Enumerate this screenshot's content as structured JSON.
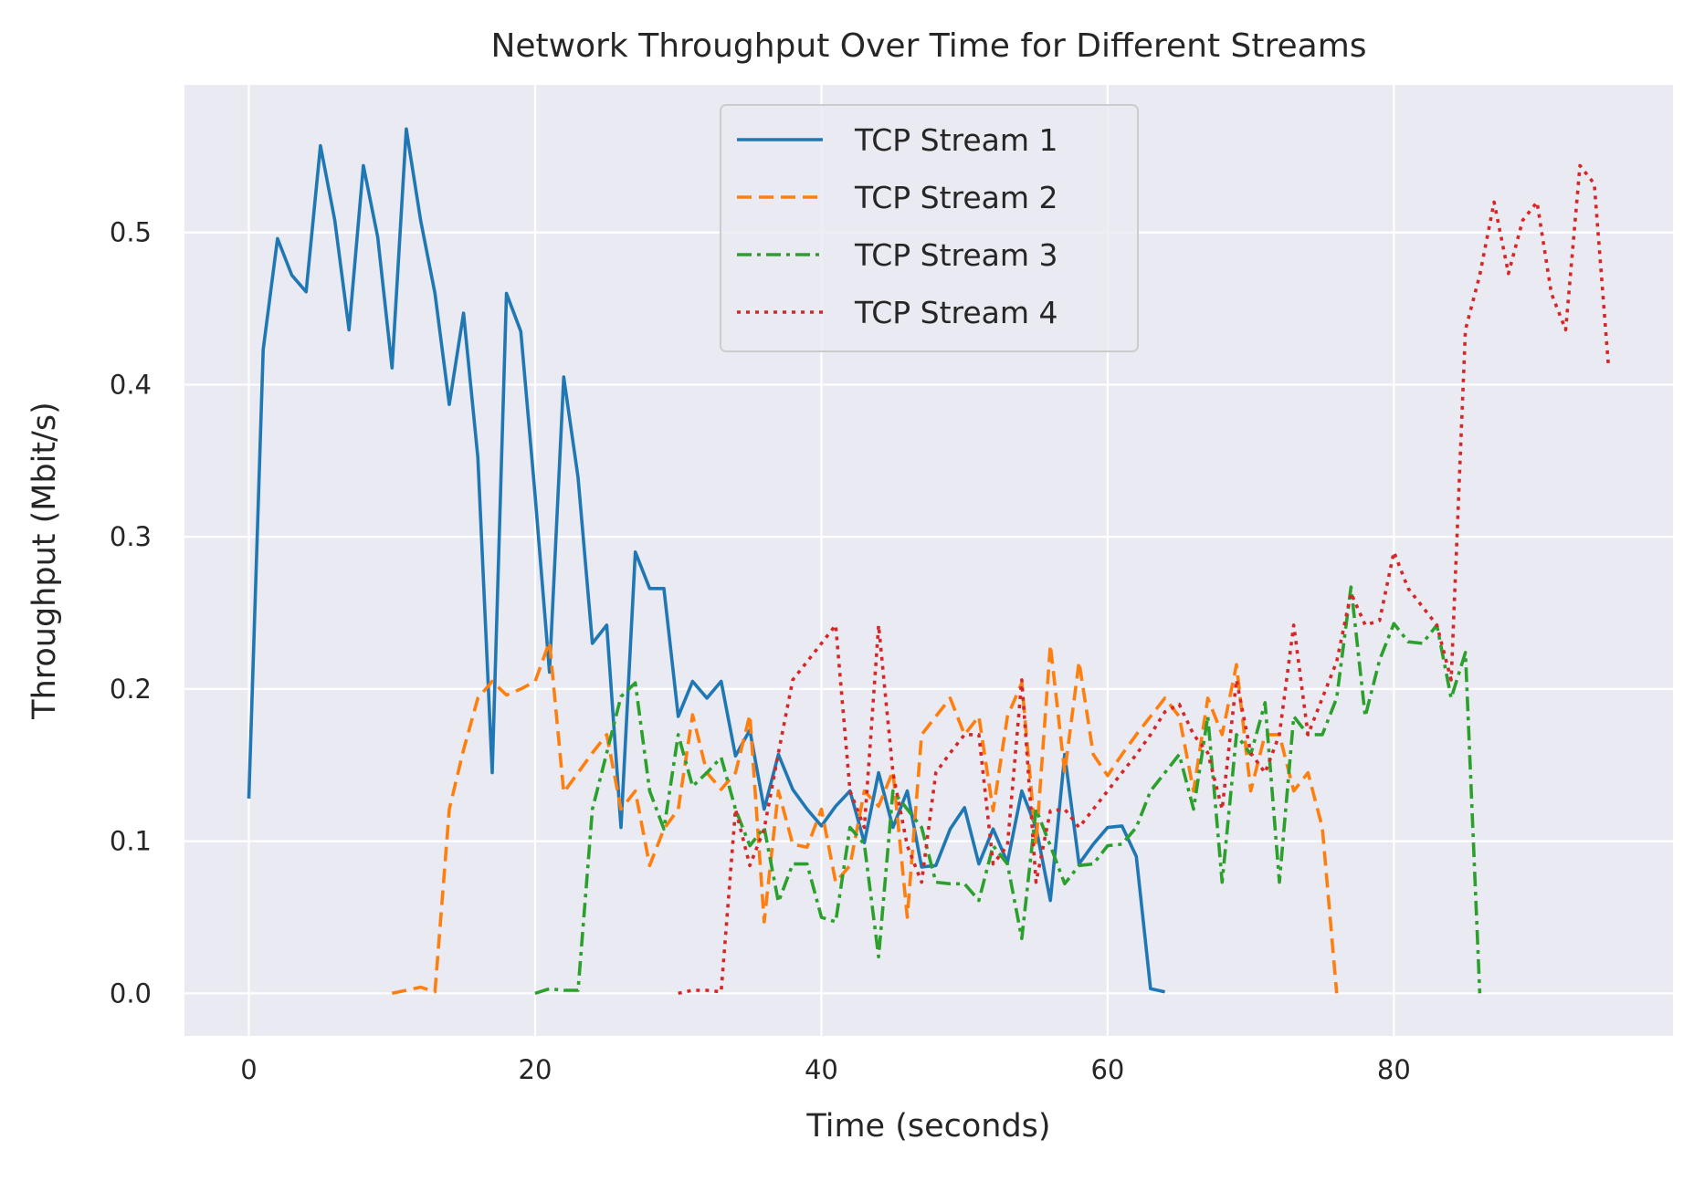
{
  "chart_data": {
    "type": "line",
    "title": "Network Throughput Over Time for Different Streams",
    "xlabel": "Time (seconds)",
    "ylabel": "Throughput (Mbit/s)",
    "xlim": [
      -4.5,
      99.5
    ],
    "ylim": [
      -0.028,
      0.597
    ],
    "xticks": [
      0,
      20,
      40,
      60,
      80
    ],
    "yticks": [
      0.0,
      0.1,
      0.2,
      0.3,
      0.4,
      0.5
    ],
    "ytick_labels": [
      "0.0",
      "0.1",
      "0.2",
      "0.3",
      "0.4",
      "0.5"
    ],
    "grid": true,
    "legend_position": "top-center",
    "background": "#eaeaf2",
    "series": [
      {
        "name": "TCP Stream 1",
        "color": "#1f77b4",
        "style": "solid",
        "x": [
          0,
          1,
          2,
          3,
          4,
          5,
          6,
          7,
          8,
          9,
          10,
          11,
          12,
          13,
          14,
          15,
          16,
          17,
          18,
          19,
          20,
          21,
          22,
          23,
          24,
          25,
          26,
          27,
          28,
          29,
          30,
          31,
          32,
          33,
          34,
          35,
          36,
          37,
          38,
          39,
          40,
          41,
          42,
          43,
          44,
          45,
          46,
          47,
          48,
          49,
          50,
          51,
          52,
          53,
          54,
          55,
          56,
          57,
          58,
          59,
          60,
          61,
          62,
          63,
          64
        ],
        "y": [
          0.128,
          0.423,
          0.496,
          0.472,
          0.461,
          0.557,
          0.508,
          0.436,
          0.544,
          0.497,
          0.411,
          0.568,
          0.508,
          0.46,
          0.387,
          0.447,
          0.352,
          0.145,
          0.46,
          0.435,
          0.327,
          0.211,
          0.405,
          0.339,
          0.23,
          0.242,
          0.109,
          0.29,
          0.266,
          0.266,
          0.182,
          0.205,
          0.194,
          0.205,
          0.156,
          0.173,
          0.121,
          0.157,
          0.134,
          0.121,
          0.11,
          0.123,
          0.133,
          0.099,
          0.145,
          0.109,
          0.133,
          0.083,
          0.084,
          0.108,
          0.122,
          0.085,
          0.108,
          0.086,
          0.133,
          0.109,
          0.061,
          0.157,
          0.085,
          0.098,
          0.109,
          0.11,
          0.09,
          0.003,
          0.001
        ]
      },
      {
        "name": "TCP Stream 2",
        "color": "#ff7f0e",
        "style": "dashed",
        "x": [
          10,
          11,
          12,
          13,
          14,
          15,
          16,
          17,
          18,
          19,
          20,
          21,
          22,
          23,
          24,
          25,
          26,
          27,
          28,
          29,
          30,
          31,
          32,
          33,
          34,
          35,
          36,
          37,
          38,
          39,
          40,
          41,
          42,
          43,
          44,
          45,
          46,
          47,
          48,
          49,
          50,
          51,
          52,
          53,
          54,
          55,
          56,
          57,
          58,
          59,
          60,
          61,
          62,
          63,
          64,
          65,
          66,
          67,
          68,
          69,
          70,
          71,
          72,
          73,
          74,
          75,
          76
        ],
        "y": [
          0.0,
          0.002,
          0.004,
          0.001,
          0.121,
          0.16,
          0.194,
          0.205,
          0.196,
          0.2,
          0.205,
          0.231,
          0.132,
          0.145,
          0.158,
          0.17,
          0.121,
          0.133,
          0.084,
          0.108,
          0.121,
          0.183,
          0.145,
          0.134,
          0.145,
          0.183,
          0.047,
          0.133,
          0.098,
          0.096,
          0.121,
          0.073,
          0.084,
          0.133,
          0.123,
          0.146,
          0.05,
          0.17,
          0.182,
          0.194,
          0.17,
          0.182,
          0.12,
          0.182,
          0.204,
          0.098,
          0.229,
          0.145,
          0.218,
          0.157,
          0.143,
          0.157,
          0.17,
          0.182,
          0.194,
          0.182,
          0.133,
          0.194,
          0.17,
          0.216,
          0.133,
          0.17,
          0.17,
          0.133,
          0.145,
          0.109,
          0.0
        ]
      },
      {
        "name": "TCP Stream 3",
        "color": "#2ca02c",
        "style": "dashdot",
        "x": [
          20,
          21,
          22,
          23,
          24,
          25,
          26,
          27,
          28,
          29,
          30,
          31,
          32,
          33,
          34,
          35,
          36,
          37,
          38,
          39,
          40,
          41,
          42,
          43,
          44,
          45,
          46,
          47,
          48,
          49,
          50,
          51,
          52,
          53,
          54,
          55,
          56,
          57,
          58,
          59,
          60,
          61,
          62,
          63,
          64,
          65,
          66,
          67,
          68,
          69,
          70,
          71,
          72,
          73,
          74,
          75,
          76,
          77,
          78,
          79,
          80,
          81,
          82,
          83,
          84,
          85,
          86
        ],
        "y": [
          0.0,
          0.003,
          0.002,
          0.002,
          0.121,
          0.158,
          0.195,
          0.204,
          0.133,
          0.108,
          0.17,
          0.136,
          0.145,
          0.155,
          0.121,
          0.097,
          0.109,
          0.06,
          0.085,
          0.085,
          0.05,
          0.047,
          0.109,
          0.098,
          0.024,
          0.133,
          0.121,
          0.109,
          0.073,
          0.072,
          0.072,
          0.061,
          0.097,
          0.085,
          0.036,
          0.121,
          0.097,
          0.072,
          0.084,
          0.085,
          0.097,
          0.098,
          0.109,
          0.133,
          0.145,
          0.157,
          0.121,
          0.182,
          0.073,
          0.17,
          0.157,
          0.191,
          0.073,
          0.182,
          0.17,
          0.17,
          0.194,
          0.267,
          0.182,
          0.219,
          0.243,
          0.231,
          0.23,
          0.242,
          0.194,
          0.224,
          0.0
        ]
      },
      {
        "name": "TCP Stream 4",
        "color": "#d62728",
        "style": "dotted",
        "x": [
          30,
          31,
          32,
          33,
          34,
          35,
          36,
          37,
          38,
          39,
          40,
          41,
          42,
          43,
          44,
          45,
          46,
          47,
          48,
          49,
          50,
          51,
          52,
          53,
          54,
          55,
          56,
          57,
          58,
          59,
          60,
          61,
          62,
          63,
          64,
          65,
          66,
          67,
          68,
          69,
          70,
          71,
          72,
          73,
          74,
          75,
          76,
          77,
          78,
          79,
          80,
          81,
          82,
          83,
          84,
          85,
          86,
          87,
          88,
          89,
          90,
          91,
          92,
          93,
          94,
          95
        ],
        "y": [
          0.0,
          0.002,
          0.002,
          0.001,
          0.121,
          0.084,
          0.108,
          0.158,
          0.206,
          0.218,
          0.23,
          0.242,
          0.133,
          0.109,
          0.242,
          0.145,
          0.097,
          0.073,
          0.145,
          0.158,
          0.17,
          0.17,
          0.085,
          0.097,
          0.206,
          0.073,
          0.12,
          0.121,
          0.109,
          0.121,
          0.133,
          0.145,
          0.157,
          0.17,
          0.185,
          0.19,
          0.17,
          0.158,
          0.121,
          0.206,
          0.158,
          0.145,
          0.17,
          0.242,
          0.17,
          0.194,
          0.218,
          0.263,
          0.242,
          0.245,
          0.29,
          0.266,
          0.254,
          0.242,
          0.206,
          0.436,
          0.472,
          0.52,
          0.473,
          0.508,
          0.52,
          0.46,
          0.436,
          0.544,
          0.532,
          0.411
        ]
      }
    ]
  }
}
